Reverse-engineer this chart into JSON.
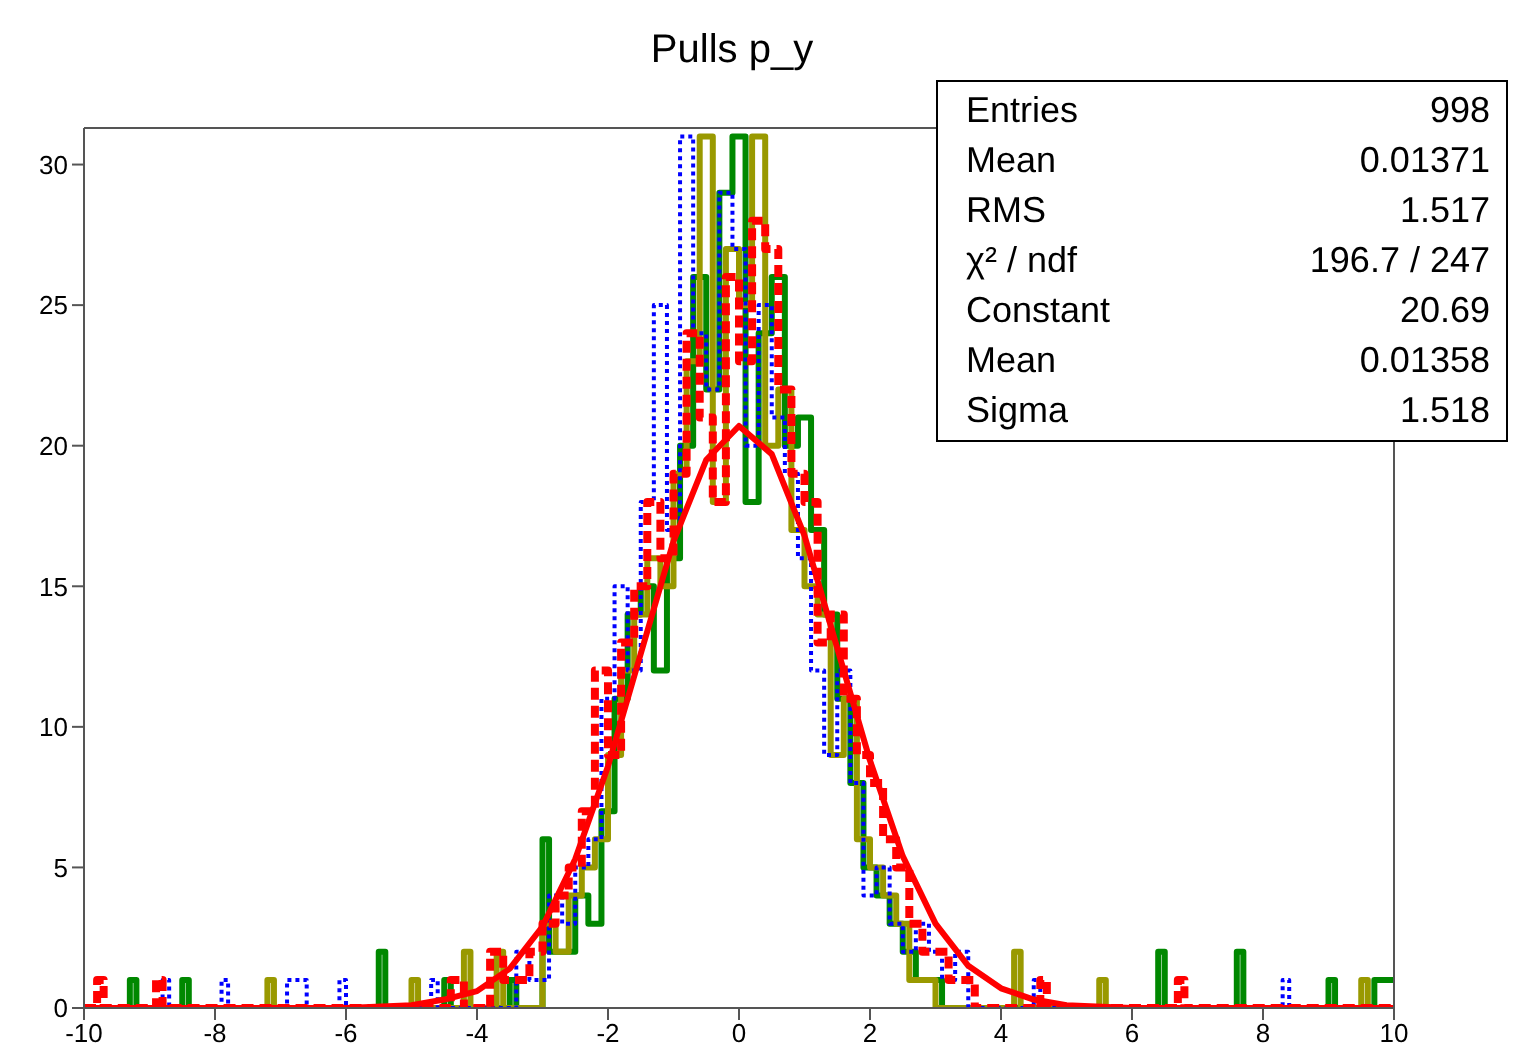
{
  "chart_data": {
    "type": "step",
    "title": "Pulls p_y",
    "xlim": [
      -10,
      10
    ],
    "xticks": [
      -10,
      -8,
      -6,
      -4,
      -2,
      0,
      2,
      4,
      6,
      8,
      10
    ],
    "ylim": [
      0,
      31.3
    ],
    "yticks": [
      0,
      5,
      10,
      15,
      20,
      25,
      30
    ],
    "annotations": [
      "Entries",
      "998",
      "Mean",
      "0.01371",
      "RMS",
      "1.517",
      "χ² / ndf",
      "196.7 / 247",
      "Constant",
      "20.69",
      "Mean",
      "0.01358",
      "Sigma",
      "1.518"
    ],
    "series": [
      {
        "color": "#008800",
        "line_style": "solid",
        "x": [
          -10,
          -9.3,
          -9.2,
          -8.5,
          -8.4,
          -5.5,
          -5.4,
          -4.5,
          -4.4,
          -3.5,
          -3.4,
          -3.0,
          -2.9,
          -2.5,
          -2.3,
          -2.1,
          -1.9,
          -1.7,
          -1.5,
          -1.3,
          -1.1,
          -0.9,
          -0.7,
          -0.5,
          -0.3,
          -0.1,
          0.1,
          0.3,
          0.5,
          0.7,
          0.9,
          1.1,
          1.3,
          1.5,
          1.7,
          1.9,
          2.1,
          2.3,
          2.5,
          2.7,
          2.9,
          3.1,
          6.4,
          6.5,
          7.6,
          7.7,
          9.0,
          9.1,
          9.7,
          10
        ],
        "values": [
          0,
          1,
          0,
          1,
          0,
          2,
          0,
          1,
          0,
          1,
          0,
          6,
          2,
          4,
          3,
          7,
          11,
          14,
          15,
          12,
          16,
          20,
          26,
          22,
          29,
          31,
          18,
          24,
          26,
          20,
          21,
          17,
          14,
          11,
          8,
          5,
          4,
          3,
          2,
          1,
          1,
          0,
          2,
          0,
          2,
          0,
          1,
          0,
          1,
          1
        ]
      },
      {
        "color": "#999900",
        "line_style": "solid",
        "x": [
          -10,
          -7.2,
          -7.1,
          -5.0,
          -4.9,
          -4.2,
          -4.1,
          -3.7,
          -3.6,
          -3.0,
          -2.8,
          -2.6,
          -2.4,
          -2.2,
          -2.0,
          -1.8,
          -1.6,
          -1.4,
          -1.2,
          -1.0,
          -0.8,
          -0.6,
          -0.4,
          -0.2,
          0.0,
          0.2,
          0.4,
          0.6,
          0.8,
          1.0,
          1.2,
          1.4,
          1.6,
          1.8,
          2.0,
          2.2,
          2.4,
          2.6,
          2.8,
          3.0,
          4.2,
          4.3,
          5.5,
          5.6,
          9.5,
          9.6,
          10
        ],
        "values": [
          0,
          1,
          0,
          1,
          0,
          2,
          0,
          2,
          0,
          3,
          2,
          4,
          5,
          6,
          9,
          12,
          14,
          16,
          15,
          19,
          23,
          31,
          18,
          27,
          25,
          31,
          20,
          22,
          17,
          15,
          14,
          9,
          11,
          6,
          5,
          4,
          3,
          1,
          1,
          0,
          2,
          0,
          1,
          0,
          1,
          0,
          0
        ]
      },
      {
        "color": "#0000ff",
        "line_style": "dotted",
        "x": [
          -10,
          -8.8,
          -8.7,
          -7.9,
          -7.8,
          -6.9,
          -6.6,
          -6.1,
          -6.0,
          -4.7,
          -4.6,
          -3.4,
          -3.2,
          -2.9,
          -2.7,
          -2.5,
          -2.3,
          -2.1,
          -1.9,
          -1.7,
          -1.5,
          -1.3,
          -1.1,
          -0.9,
          -0.7,
          -0.5,
          -0.3,
          -0.1,
          0.1,
          0.3,
          0.5,
          0.7,
          0.9,
          1.1,
          1.3,
          1.5,
          1.7,
          1.9,
          2.1,
          2.3,
          2.5,
          2.7,
          2.9,
          3.1,
          3.3,
          3.5,
          4.5,
          4.6,
          8.3,
          8.4,
          10
        ],
        "values": [
          0,
          1,
          0,
          1,
          0,
          1,
          0,
          1,
          0,
          1,
          0,
          2,
          1,
          4,
          3,
          5,
          6,
          11,
          15,
          12,
          18,
          25,
          17,
          31,
          24,
          22,
          29,
          27,
          20,
          25,
          21,
          19,
          16,
          12,
          9,
          12,
          8,
          4,
          5,
          3,
          2,
          3,
          2,
          1,
          2,
          0,
          1,
          0,
          1,
          0,
          0
        ]
      },
      {
        "color": "#ff0000",
        "line_style": "dashed",
        "x": [
          -10,
          -9.8,
          -9.7,
          -8.9,
          -8.8,
          -4.4,
          -4.2,
          -3.8,
          -3.6,
          -3.2,
          -3.0,
          -2.8,
          -2.6,
          -2.4,
          -2.2,
          -2.0,
          -1.8,
          -1.6,
          -1.4,
          -1.2,
          -1.0,
          -0.8,
          -0.6,
          -0.4,
          -0.2,
          0.0,
          0.2,
          0.4,
          0.6,
          0.8,
          1.0,
          1.2,
          1.4,
          1.6,
          1.8,
          2.0,
          2.2,
          2.4,
          2.6,
          2.8,
          3.0,
          3.2,
          3.4,
          3.6,
          4.6,
          4.7,
          6.7,
          6.8,
          10
        ],
        "values": [
          0,
          1,
          0,
          1,
          0,
          1,
          0,
          2,
          1,
          2,
          3,
          4,
          5,
          7,
          12,
          9,
          13,
          15,
          18,
          16,
          19,
          24,
          21,
          18,
          26,
          23,
          28,
          27,
          22,
          19,
          18,
          13,
          14,
          11,
          9,
          8,
          6,
          5,
          3,
          2,
          2,
          1,
          1,
          0,
          1,
          0,
          1,
          0,
          0
        ]
      },
      {
        "type": "line",
        "color": "#ff0000",
        "line_style": "solid",
        "x": [
          -10,
          -6,
          -5,
          -4.5,
          -4,
          -3.5,
          -3,
          -2.5,
          -2,
          -1.5,
          -1,
          -0.5,
          0,
          0.5,
          1,
          1.5,
          2,
          2.5,
          3,
          3.5,
          4,
          4.5,
          5,
          6,
          10
        ],
        "values": [
          0,
          0,
          0.1,
          0.3,
          0.6,
          1.4,
          2.9,
          5.3,
          8.6,
          12.6,
          16.6,
          19.5,
          20.7,
          19.7,
          16.8,
          12.8,
          8.8,
          5.4,
          3,
          1.5,
          0.7,
          0.3,
          0.1,
          0,
          0
        ]
      }
    ]
  }
}
